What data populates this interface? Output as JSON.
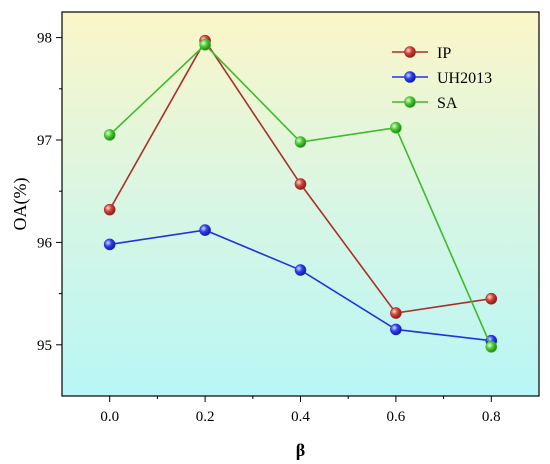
{
  "chart_data": {
    "type": "line",
    "x": [
      0.0,
      0.2,
      0.4,
      0.6,
      0.8
    ],
    "x_tick_labels": [
      "0.0",
      "0.2",
      "0.4",
      "0.6",
      "0.8"
    ],
    "y_tick_labels": [
      "95",
      "96",
      "97",
      "98"
    ],
    "y_ticks": [
      95,
      96,
      97,
      98
    ],
    "xlim": [
      -0.1,
      0.9
    ],
    "ylim": [
      94.5,
      98.25
    ],
    "xlabel": "β",
    "ylabel": "OA(%)",
    "legend_position": "top-right",
    "grid": false,
    "background": "vertical gradient from pale yellow (top) to pale cyan (bottom)",
    "series": [
      {
        "name": "IP",
        "color": "#a8302a",
        "marker": "#c0392b",
        "values": [
          96.32,
          97.97,
          96.57,
          95.31,
          95.45
        ]
      },
      {
        "name": "UH2013",
        "color": "#2233dd",
        "marker": "#2a3bf0",
        "values": [
          95.98,
          96.12,
          95.73,
          95.15,
          95.04
        ]
      },
      {
        "name": "SA",
        "color": "#3dbb2a",
        "marker": "#4ccc36",
        "values": [
          97.05,
          97.93,
          96.98,
          97.12,
          94.98
        ]
      }
    ]
  }
}
